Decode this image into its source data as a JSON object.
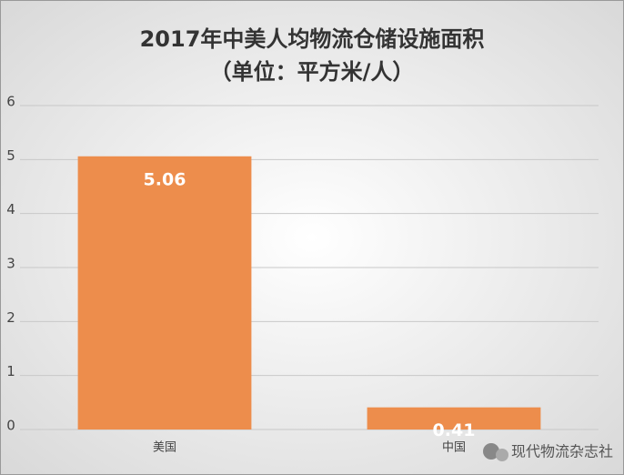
{
  "chart_data": {
    "type": "bar",
    "title": "2017年中美人均物流仓储设施面积",
    "subtitle": "（单位：平方米/人）",
    "categories": [
      "美国",
      "中国"
    ],
    "values": [
      5.06,
      0.41
    ],
    "color": "#ed8d4c",
    "ylim": [
      0,
      6
    ],
    "yticks": [
      0,
      1,
      2,
      3,
      4,
      5,
      6
    ],
    "grid": true,
    "watermark": "现代物流杂志社"
  }
}
